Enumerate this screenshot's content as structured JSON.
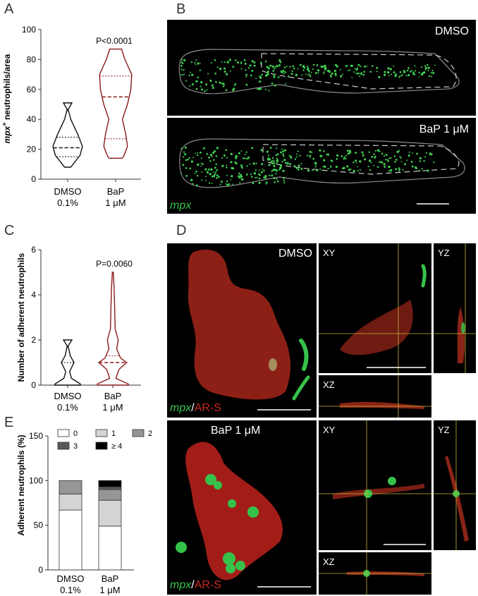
{
  "panels": {
    "A": {
      "letter": "A",
      "ylabel_prefix": "mpx",
      "ylabel_sup": "+",
      "ylabel_rest": " neutrophils/area",
      "categories": [
        "DMSO 0.1%",
        "BaP 1 μM"
      ],
      "cat_lines": [
        [
          "DMSO",
          "0.1%"
        ],
        [
          "BaP",
          "1 μM"
        ]
      ],
      "pvalue": "P<0.0001",
      "yticks": [
        "0",
        "20",
        "40",
        "60",
        "80",
        "100"
      ]
    },
    "B": {
      "letter": "B",
      "label_top": "DMSO",
      "label_bottom": "BaP 1 μM",
      "stain": "mpx"
    },
    "C": {
      "letter": "C",
      "ylabel": "Number of adherent neutrophils",
      "cat_lines": [
        [
          "DMSO",
          "0.1%"
        ],
        [
          "BaP",
          "1 μM"
        ]
      ],
      "pvalue": "P=0.0060",
      "yticks": [
        "0",
        "2",
        "4",
        "6"
      ]
    },
    "D": {
      "letter": "D",
      "label_top": "DMSO",
      "label_bottom": "BaP 1 μM",
      "xy": "XY",
      "yz": "YZ",
      "xz": "XZ",
      "stain_green": "mpx",
      "stain_sep": "/",
      "stain_red": "AR-S"
    },
    "E": {
      "letter": "E",
      "ylabel": "Adherent neutrophils (%)",
      "cat_lines": [
        [
          "DMSO",
          "0.1%"
        ],
        [
          "BaP",
          "1 μM"
        ]
      ],
      "yticks": [
        "0",
        "50",
        "100",
        "150"
      ],
      "legend": [
        "0",
        "1",
        "2",
        "3",
        "≥ 4"
      ]
    }
  },
  "colors": {
    "dmso": "#111111",
    "bap": "#8b1a1a",
    "green": "#36c24a",
    "red": "#c8281e"
  },
  "chart_data": [
    {
      "id": "A",
      "type": "violin",
      "categories": [
        "DMSO 0.1%",
        "BaP 1 μM"
      ],
      "ylabel": "mpx+ neutrophils/area",
      "ylim": [
        0,
        100
      ],
      "series": [
        {
          "name": "DMSO 0.1%",
          "min": 8,
          "q1": 15,
          "median": 21,
          "q3": 28,
          "max": 51
        },
        {
          "name": "BaP 1 μM",
          "min": 14,
          "q1": 27,
          "median": 55,
          "q3": 69,
          "max": 87
        }
      ],
      "annotation": "P<0.0001"
    },
    {
      "id": "C",
      "type": "violin",
      "categories": [
        "DMSO 0.1%",
        "BaP 1 μM"
      ],
      "ylabel": "Number of adherent neutrophils",
      "ylim": [
        0,
        6
      ],
      "series": [
        {
          "name": "DMSO 0.1%",
          "min": 0,
          "median": 0,
          "q3": 1,
          "max": 2
        },
        {
          "name": "BaP 1 μM",
          "min": 0,
          "q1": 0,
          "median": 1,
          "q3": 1,
          "max": 5
        }
      ],
      "annotation": "P=0.0060"
    },
    {
      "id": "E",
      "type": "bar",
      "stacked": true,
      "categories": [
        "DMSO 0.1%",
        "BaP 1 μM"
      ],
      "ylabel": "Adherent neutrophils (%)",
      "ylim": [
        0,
        150
      ],
      "series": [
        {
          "name": "0",
          "values": [
            67,
            49
          ],
          "color": "#ffffff"
        },
        {
          "name": "1",
          "values": [
            18,
            29
          ],
          "color": "#d4d4d4"
        },
        {
          "name": "2",
          "values": [
            15,
            12
          ],
          "color": "#969696"
        },
        {
          "name": "3",
          "values": [
            0,
            3
          ],
          "color": "#5a5a5a"
        },
        {
          "name": "≥ 4",
          "values": [
            0,
            7
          ],
          "color": "#000000"
        }
      ]
    }
  ]
}
